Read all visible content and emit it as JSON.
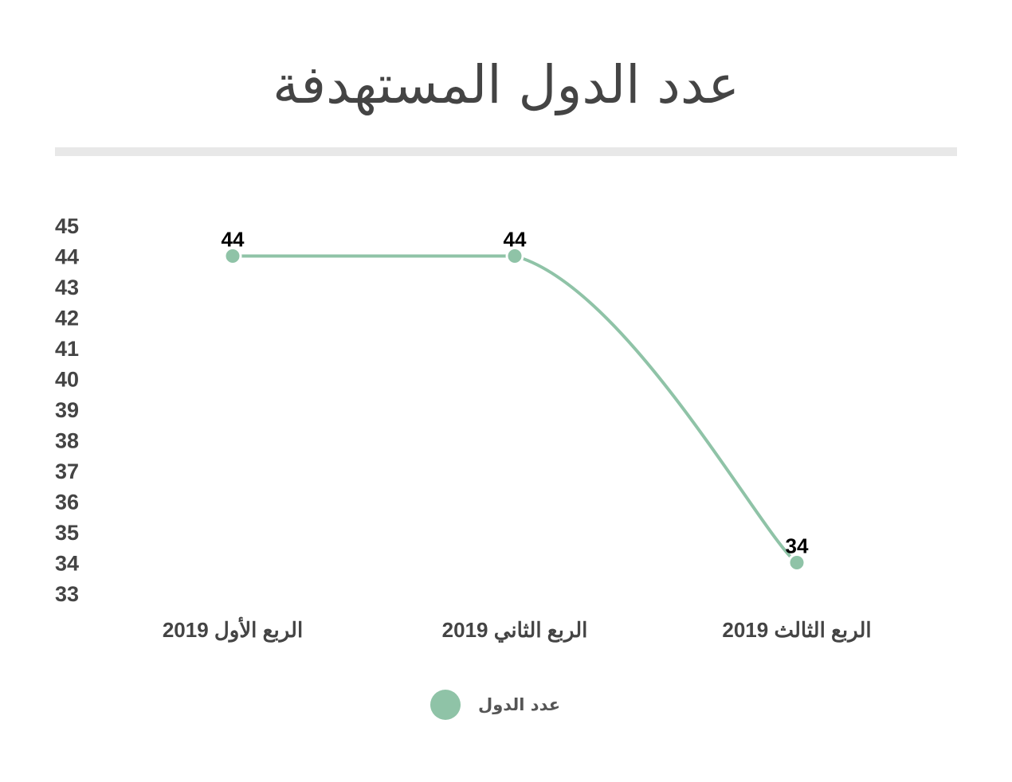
{
  "chart_data": {
    "type": "line",
    "title": "عدد الدول المستهدفة",
    "categories": [
      "الربع الأول 2019",
      "الربع الثاني 2019",
      "الربع الثالث 2019"
    ],
    "series": [
      {
        "name": "عدد الدول",
        "values": [
          44,
          44,
          34
        ],
        "color": "#8fc3a7"
      }
    ],
    "data_labels": [
      "44",
      "44",
      "34"
    ],
    "yticks": [
      "45",
      "44",
      "43",
      "42",
      "41",
      "40",
      "39",
      "38",
      "37",
      "36",
      "35",
      "34",
      "33"
    ],
    "ylim": [
      33,
      45
    ],
    "xlabel": "",
    "ylabel": "",
    "grid": false,
    "legend_position": "bottom",
    "smooth": true
  }
}
